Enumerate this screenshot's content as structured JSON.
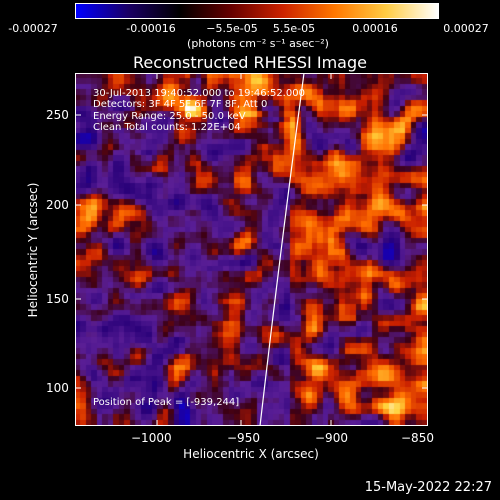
{
  "colorbar": {
    "ticks": [
      "-0.00027",
      "-0.00016",
      "−5.5e-05",
      "5.5e-05",
      "0.00016",
      "0.00027"
    ],
    "units_label": "(photons cm⁻² s⁻¹ asec⁻²)",
    "gradient": [
      "#0000ff",
      "#1a0066",
      "#000000",
      "#660000",
      "#cc2200",
      "#ff7700",
      "#ffcc44",
      "#ffffff"
    ]
  },
  "title": "Reconstructed RHESSI Image",
  "info": {
    "line1": "30-Jul-2013 19:40:52.000 to 19:46:52.000",
    "line2": "Detectors: 3F 4F 5F 6F 7F 8F, Att 0",
    "line3": "Energy Range: 25.0 - 50.0 keV",
    "line4": "Clean    Total counts: 1.22E+04"
  },
  "peak_label": "Position of Peak = [-939,244]",
  "xaxis": {
    "label": "Heliocentric X (arcsec)",
    "ticks": [
      "−1000",
      "−950",
      "−900",
      "−850"
    ]
  },
  "yaxis": {
    "label": "Heliocentric Y (arcsec)",
    "ticks": [
      "250",
      "200",
      "150",
      "100"
    ]
  },
  "timestamp": "15-May-2022 22:27"
}
